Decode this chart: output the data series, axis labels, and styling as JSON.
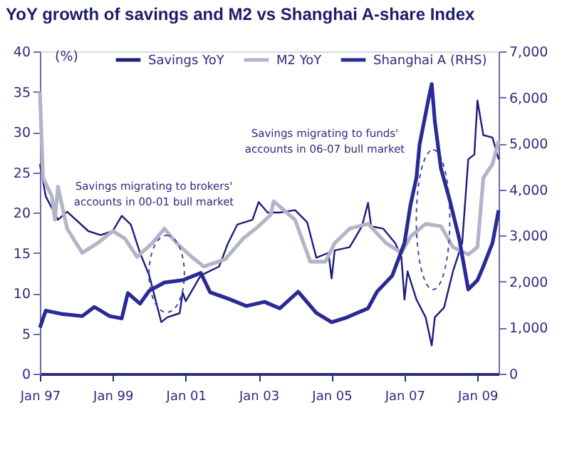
{
  "chart_data": {
    "type": "line",
    "title": "YoY growth of savings and M2 vs Shanghai A-share Index",
    "ylabel": "(%)",
    "xlim": [
      "1997-01",
      "2009-08"
    ],
    "xticks": [
      {
        "value": "1997-01",
        "label": "Jan 97"
      },
      {
        "value": "1999-01",
        "label": "Jan 99"
      },
      {
        "value": "2001-01",
        "label": "Jan 01"
      },
      {
        "value": "2003-01",
        "label": "Jan 03"
      },
      {
        "value": "2005-01",
        "label": "Jan 05"
      },
      {
        "value": "2007-01",
        "label": "Jan 07"
      },
      {
        "value": "2009-01",
        "label": "Jan 09"
      }
    ],
    "ylim": [
      0,
      40
    ],
    "yticks": [
      0,
      5,
      10,
      15,
      20,
      25,
      30,
      35,
      40
    ],
    "y2lim": [
      0,
      7000
    ],
    "y2ticks": [
      0,
      {
        "value": 1000,
        "label": "1,000"
      },
      {
        "value": 2000,
        "label": "2,000"
      },
      {
        "value": 3000,
        "label": "3,000"
      },
      {
        "value": 4000,
        "label": "4,000"
      },
      {
        "value": 5000,
        "label": "5,000"
      },
      {
        "value": 6000,
        "label": "6,000"
      },
      {
        "value": 7000,
        "label": "7,000"
      }
    ],
    "grid": false,
    "legend": "top",
    "marker": "none",
    "line_style": "solid",
    "series": [
      {
        "name": "Savings YoY",
        "color": "#1c1c7a",
        "x": [
          "1997-01",
          "1997-03",
          "1997-07",
          "1997-10",
          "1998-05",
          "1998-09",
          "1999-01",
          "1999-04",
          "1999-07",
          "1999-10",
          "2000-01",
          "2000-05",
          "2000-07",
          "2000-11",
          "2000-12",
          "2001-01",
          "2001-06",
          "2001-12",
          "2002-03",
          "2002-06",
          "2002-11",
          "2003-01",
          "2003-04",
          "2003-08",
          "2004-01",
          "2004-05",
          "2004-08",
          "2004-12",
          "2005-01",
          "2005-02",
          "2005-07",
          "2005-11",
          "2006-01",
          "2006-02",
          "2006-06",
          "2006-10",
          "2006-12",
          "2007-01",
          "2007-02",
          "2007-05",
          "2007-08",
          "2007-10",
          "2007-11",
          "2008-02",
          "2008-05",
          "2008-08",
          "2008-10",
          "2008-12",
          "2009-01",
          "2009-03",
          "2009-06",
          "2009-08"
        ],
        "values": [
          26,
          22,
          19.1,
          20.1,
          17.7,
          17.2,
          17.7,
          19.6,
          18.5,
          15,
          12.2,
          6.4,
          7,
          7.5,
          10.1,
          9,
          12.2,
          13.3,
          16.2,
          18.5,
          19.1,
          21.3,
          20,
          20,
          20.3,
          18.8,
          14.4,
          15,
          11.8,
          15.3,
          15.7,
          18.3,
          21.2,
          18.3,
          18,
          16.2,
          14.5,
          9.2,
          12.7,
          9.2,
          7,
          3.5,
          7,
          8.2,
          12.7,
          16.2,
          26.6,
          27.2,
          33.9,
          29.6,
          29.3,
          26.6
        ]
      },
      {
        "name": "M2 YoY",
        "color": "#b4b4c8",
        "x": [
          "1997-01",
          "1997-02",
          "1997-05",
          "1997-06",
          "1997-07",
          "1997-10",
          "1998-03",
          "1998-08",
          "1999-01",
          "1999-05",
          "1999-09",
          "2000-02",
          "2000-06",
          "2000-10",
          "2001-03",
          "2001-07",
          "2002-02",
          "2002-08",
          "2003-01",
          "2003-05",
          "2003-06",
          "2004-01",
          "2004-06",
          "2004-11",
          "2005-02",
          "2005-07",
          "2006-01",
          "2006-07",
          "2006-12",
          "2007-03",
          "2007-08",
          "2008-01",
          "2008-05",
          "2008-10",
          "2009-01",
          "2009-03",
          "2009-06",
          "2009-08"
        ],
        "values": [
          35,
          24.3,
          22,
          19.1,
          23.2,
          18,
          15,
          16.2,
          17.7,
          16.8,
          14.5,
          16.2,
          18,
          16.2,
          14.5,
          13.3,
          14.2,
          16.8,
          18.3,
          19.7,
          21.4,
          19.1,
          13.9,
          13.9,
          16.2,
          18,
          18.6,
          16.2,
          15,
          17,
          18.6,
          18.3,
          15.7,
          14.8,
          15.7,
          24.3,
          26,
          28.9
        ]
      },
      {
        "name": "Shanghai A (RHS)",
        "color": "#2a2a96",
        "axis": "y2",
        "x": [
          "1997-01",
          "1997-03",
          "1997-08",
          "1998-03",
          "1998-07",
          "1998-12",
          "1999-04",
          "1999-06",
          "1999-10",
          "2000-01",
          "2000-06",
          "2000-12",
          "2001-06",
          "2001-09",
          "2002-03",
          "2002-09",
          "2003-03",
          "2003-08",
          "2004-02",
          "2004-08",
          "2005-01",
          "2005-06",
          "2006-01",
          "2006-04",
          "2006-09",
          "2007-01",
          "2007-03",
          "2007-05",
          "2007-06",
          "2007-09",
          "2007-10",
          "2007-11",
          "2008-01",
          "2008-04",
          "2008-07",
          "2008-10",
          "2009-01",
          "2009-03",
          "2009-06",
          "2009-08"
        ],
        "values": [
          1000,
          1370,
          1300,
          1250,
          1450,
          1250,
          1200,
          1750,
          1520,
          1800,
          1980,
          2030,
          2190,
          1770,
          1630,
          1470,
          1560,
          1420,
          1780,
          1320,
          1120,
          1220,
          1420,
          1780,
          2130,
          2840,
          3650,
          4260,
          4970,
          5990,
          6290,
          5480,
          4460,
          3750,
          2940,
          1830,
          2030,
          2330,
          2840,
          3550
        ]
      }
    ],
    "annotations": [
      "Savings migrating to brokers'\naccounts in 00-01 bull market",
      "Savings migrating to funds'\naccounts in 06-07 bull market"
    ]
  }
}
